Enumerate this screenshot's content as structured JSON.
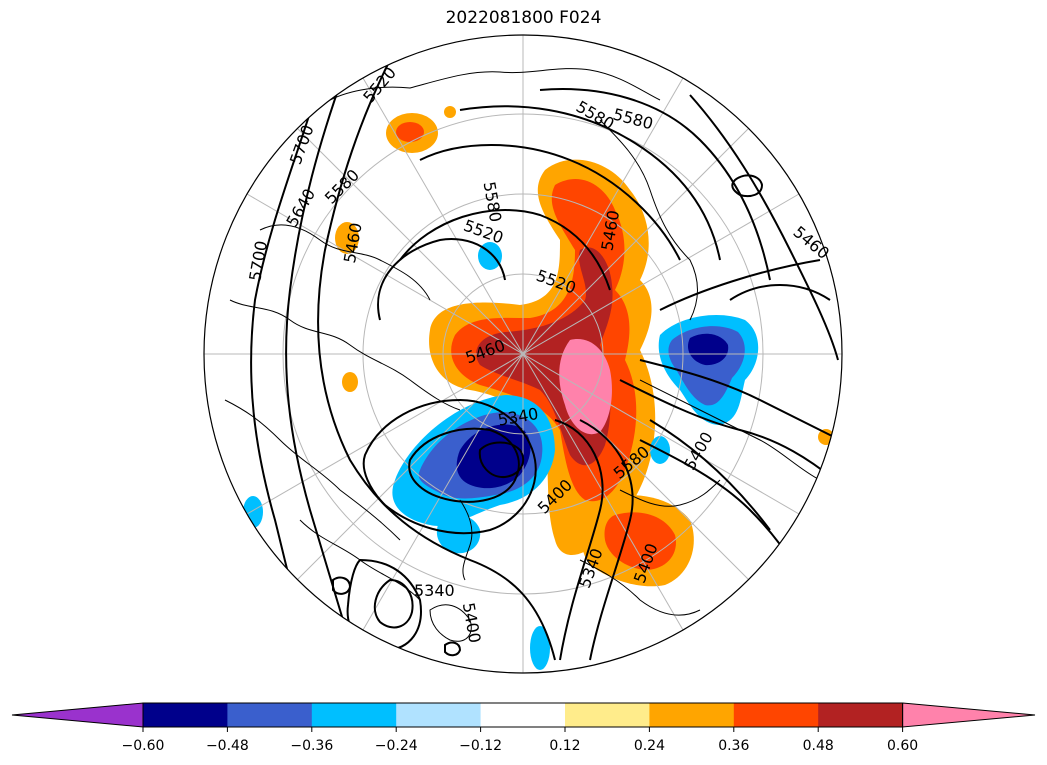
{
  "title": "2022081800 F024",
  "colorbar": {
    "colors": [
      "#9a32cd",
      "#00008b",
      "#3a5fcd",
      "#00bfff",
      "#b0e2ff",
      "#ffffff",
      "#ffec8b",
      "#ffa500",
      "#ff4500",
      "#b22222",
      "#ff82ab"
    ],
    "ticks": [
      "−0.60",
      "−0.48",
      "−0.36",
      "−0.24",
      "−0.12",
      "0.12",
      "0.24",
      "0.36",
      "0.48",
      "0.60"
    ]
  },
  "contour_labels": [
    "5520",
    "5700",
    "5640",
    "5580",
    "5460",
    "5700",
    "5580",
    "5580",
    "5520",
    "5580",
    "5520",
    "5460",
    "5340",
    "5400",
    "5580",
    "5400",
    "5340",
    "5400",
    "5340",
    "5460",
    "5400",
    "5460"
  ]
}
